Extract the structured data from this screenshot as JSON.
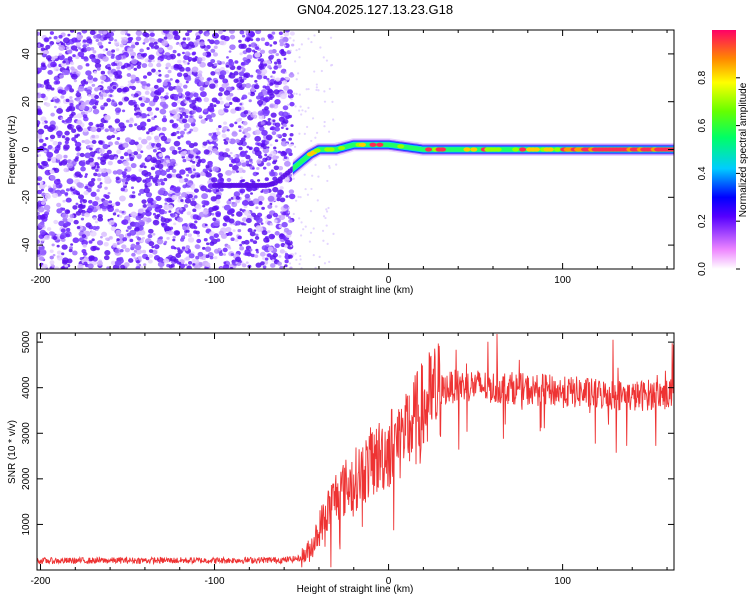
{
  "title": "GN04.2025.127.13.23.G18",
  "chart_data": [
    {
      "type": "heatmap",
      "xlabel": "Height of straight line (km)",
      "ylabel": "Frequency (Hz)",
      "xlim": [
        -202,
        164
      ],
      "ylim": [
        -50,
        50
      ],
      "xticks": [
        -200,
        -100,
        0,
        100
      ],
      "yticks": [
        -40,
        -20,
        0,
        20,
        40
      ],
      "colorbar": {
        "label": "Normalized spectral amplitude",
        "range": [
          0,
          1
        ],
        "ticks": [
          "0.0",
          "0.2",
          "0.4",
          "0.6",
          "0.8"
        ]
      },
      "ridge_track": {
        "x": [
          -202,
          -100,
          -70,
          -65,
          -60,
          -55,
          -50,
          -45,
          -40,
          -35,
          -30,
          -25,
          -20,
          -15,
          -10,
          0,
          10,
          20,
          40,
          60,
          80,
          100,
          120,
          140,
          164
        ],
        "y": [
          -15,
          -15,
          -15,
          -14,
          -11,
          -8,
          -5,
          -2,
          0,
          0,
          0,
          1,
          2,
          2,
          2,
          2,
          1,
          0,
          0,
          0,
          0,
          0,
          0,
          0,
          0
        ]
      },
      "noise_region_x": [
        -202,
        -55
      ],
      "signal_start_x": -55,
      "strong_signal_x": [
        -45,
        164
      ]
    },
    {
      "type": "line",
      "xlabel": "Height of straight line (km)",
      "ylabel": "SNR (10 * v/v)",
      "xlim": [
        -202,
        164
      ],
      "ylim": [
        0,
        5200
      ],
      "xticks": [
        -200,
        -100,
        0,
        100
      ],
      "yticks": [
        1000,
        2000,
        3000,
        4000,
        5000
      ],
      "color": "#ee3333",
      "series": [
        {
          "x": [
            -202,
            -150,
            -100,
            -60,
            -50,
            -45,
            -40,
            -35,
            -30,
            -25,
            -20,
            -15,
            -10,
            -5,
            0,
            5,
            10,
            15,
            20,
            25,
            30,
            40,
            50,
            60,
            70,
            80,
            90,
            100,
            110,
            120,
            130,
            140,
            150,
            164
          ],
          "values": [
            200,
            210,
            210,
            220,
            260,
            450,
            900,
            1300,
            1650,
            1800,
            1950,
            2150,
            2350,
            2500,
            2650,
            2850,
            3050,
            3250,
            3500,
            3750,
            3950,
            4050,
            4050,
            4000,
            4000,
            3950,
            3950,
            3900,
            3900,
            3850,
            3850,
            3800,
            3850,
            3850
          ]
        }
      ]
    }
  ]
}
